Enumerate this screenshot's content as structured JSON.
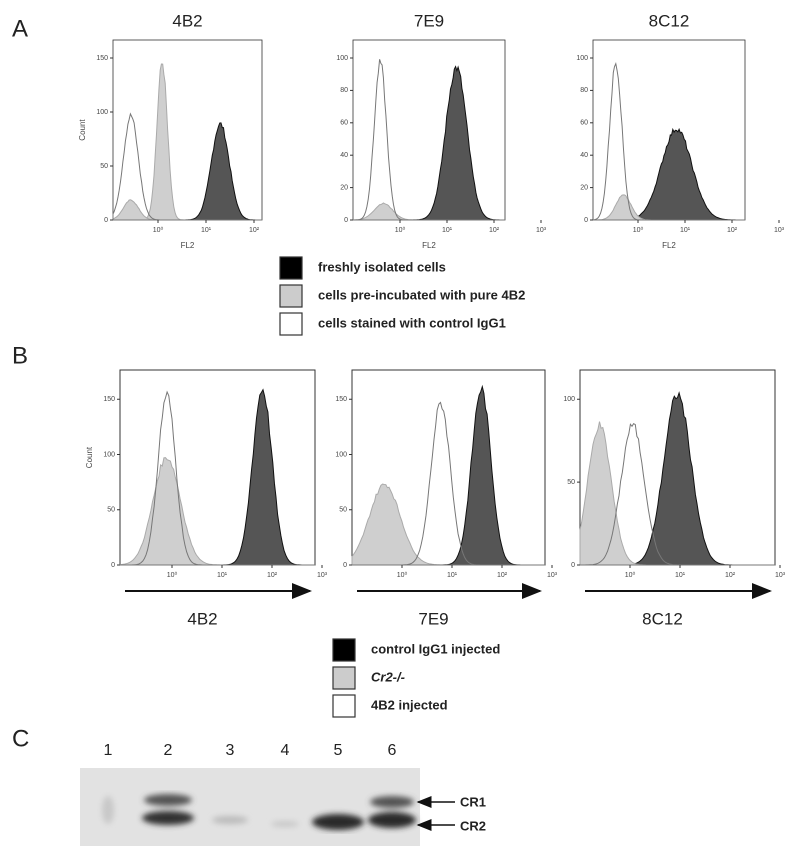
{
  "panel_a": {
    "label": "A",
    "plots": [
      {
        "title": "4B2",
        "y_label": "Count",
        "x_label": "FL2",
        "yticks": [
          "0",
          "50",
          "100",
          "150"
        ],
        "xticks": [
          "10⁰",
          "10¹",
          "10²"
        ]
      },
      {
        "title": "7E9",
        "x_label": "FL2",
        "yticks": [
          "0",
          "20",
          "40",
          "60",
          "80",
          "100"
        ],
        "xticks": [
          "10⁰",
          "10¹",
          "10²",
          "10³"
        ]
      },
      {
        "title": "8C12",
        "x_label": "FL2",
        "yticks": [
          "0",
          "20",
          "40",
          "60",
          "80",
          "100"
        ],
        "xticks": [
          "10⁰",
          "10¹",
          "10²",
          "10³"
        ]
      }
    ],
    "legend": [
      "freshly isolated cells",
      "cells pre-incubated with pure 4B2",
      "cells stained with control IgG1"
    ]
  },
  "panel_b": {
    "label": "B",
    "plots": [
      {
        "title": "4B2",
        "y_label": "Count",
        "yticks": [
          "0",
          "50",
          "100",
          "150"
        ],
        "xticks": [
          "10⁰",
          "10¹",
          "10²",
          "10³"
        ]
      },
      {
        "title": "7E9",
        "yticks": [
          "0",
          "50",
          "100",
          "150"
        ],
        "xticks": [
          "10⁰",
          "10¹",
          "10²",
          "10³"
        ]
      },
      {
        "title": "8C12",
        "yticks": [
          "0",
          "50",
          "100"
        ],
        "xticks": [
          "10⁰",
          "10¹",
          "10²",
          "10³"
        ]
      }
    ],
    "legend": [
      "control IgG1 injected",
      "Cr2-/-",
      "4B2 injected"
    ]
  },
  "panel_c": {
    "label": "C",
    "lanes": [
      "1",
      "2",
      "3",
      "4",
      "5",
      "6"
    ],
    "bands": [
      "CR1",
      "CR2"
    ]
  }
}
